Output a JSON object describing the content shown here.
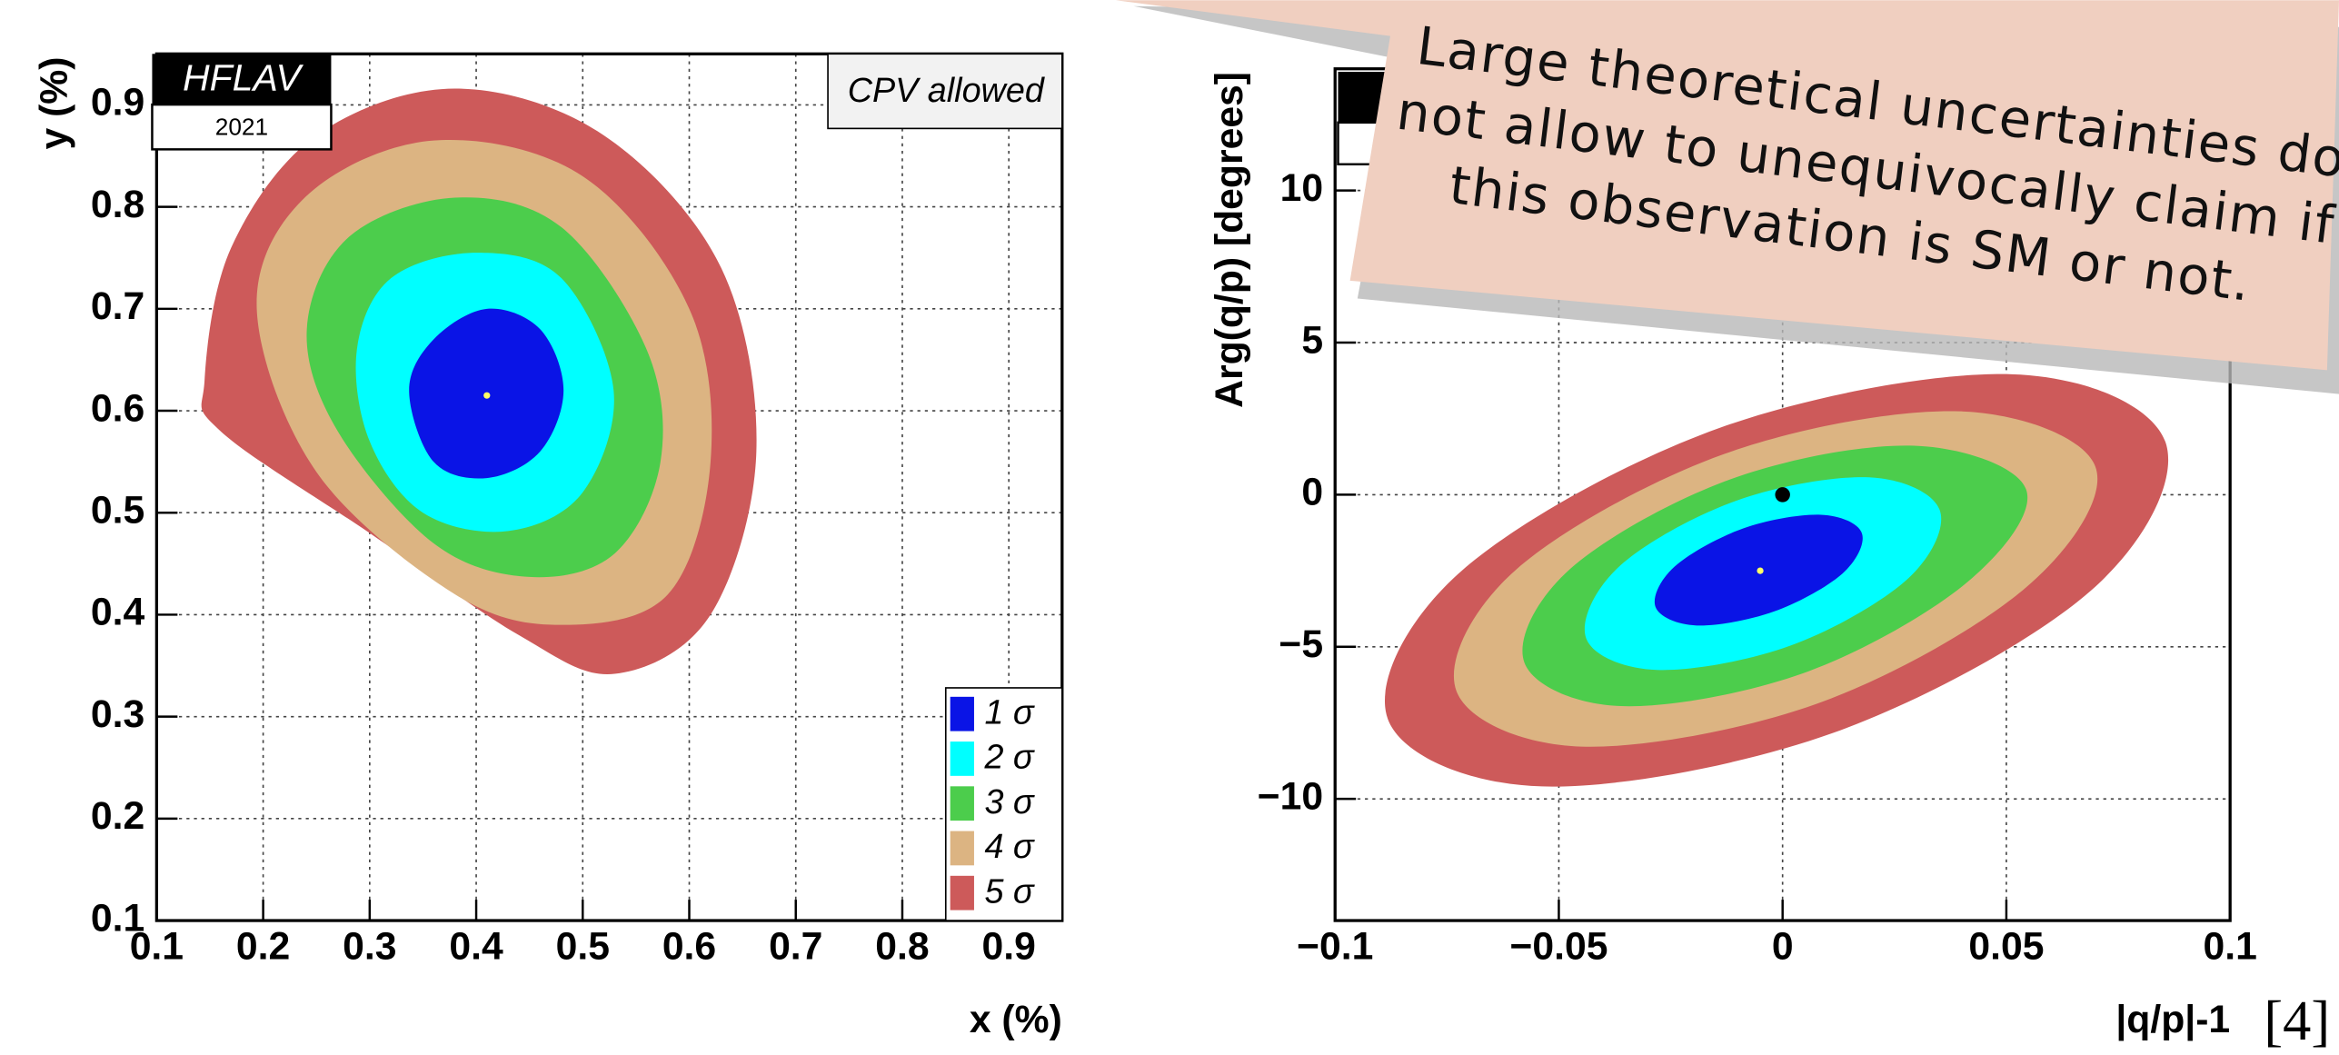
{
  "chart_data": [
    {
      "type": "contour",
      "x_label": "x (%)",
      "y_label": "y (%)",
      "badge": {
        "title": "HFLAV",
        "year": "2021"
      },
      "note": "CPV allowed",
      "xlim": [
        0.1,
        0.95
      ],
      "ylim": [
        0.1,
        0.95
      ],
      "xticks": [
        0.1,
        0.2,
        0.3,
        0.4,
        0.5,
        0.6,
        0.7,
        0.8,
        0.9
      ],
      "yticks": [
        0.1,
        0.2,
        0.3,
        0.4,
        0.5,
        0.6,
        0.7,
        0.8,
        0.9
      ],
      "grid": true,
      "legend": "bottom right",
      "series": [
        {
          "name": "1 σ",
          "color": "#0a14e6",
          "x": [
            0.337,
            0.36,
            0.41,
            0.46,
            0.482,
            0.46,
            0.41,
            0.36
          ],
          "y": [
            0.62,
            0.67,
            0.7,
            0.68,
            0.62,
            0.56,
            0.534,
            0.55
          ]
        },
        {
          "name": "2 σ",
          "color": "#00ffff",
          "x": [
            0.288,
            0.32,
            0.4,
            0.48,
            0.529,
            0.5,
            0.43,
            0.35,
            0.3
          ],
          "y": [
            0.66,
            0.73,
            0.755,
            0.73,
            0.62,
            0.52,
            0.482,
            0.5,
            0.57
          ]
        },
        {
          "name": "3 σ",
          "color": "#4ccd4c",
          "x": [
            0.241,
            0.28,
            0.38,
            0.48,
            0.56,
            0.573,
            0.53,
            0.45,
            0.36,
            0.27
          ],
          "y": [
            0.68,
            0.77,
            0.809,
            0.78,
            0.66,
            0.55,
            0.46,
            0.437,
            0.47,
            0.58
          ]
        },
        {
          "name": "4 σ",
          "color": "#dcb482",
          "x": [
            0.194,
            0.24,
            0.36,
            0.5,
            0.6,
            0.62,
            0.58,
            0.48,
            0.38,
            0.25
          ],
          "y": [
            0.7,
            0.81,
            0.865,
            0.83,
            0.7,
            0.55,
            0.42,
            0.39,
            0.42,
            0.54
          ]
        },
        {
          "name": "5 σ",
          "color": "#cd5a5a",
          "x": [
            0.145,
            0.17,
            0.25,
            0.38,
            0.52,
            0.63,
            0.663,
            0.62,
            0.53,
            0.44,
            0.3,
            0.16
          ],
          "y": [
            0.63,
            0.76,
            0.87,
            0.916,
            0.87,
            0.74,
            0.56,
            0.4,
            0.342,
            0.38,
            0.48,
            0.58
          ]
        }
      ],
      "points": [
        {
          "x": 0.41,
          "y": 0.615,
          "color": "#ffff66"
        }
      ]
    },
    {
      "type": "contour",
      "x_label": "|q/p|-1",
      "y_label": "Arg(q/p) [degrees]",
      "xlim": [
        -0.1,
        0.1
      ],
      "ylim": [
        -14,
        14
      ],
      "xticks": [
        {
          "value": -0.1,
          "label": "−0.1"
        },
        {
          "value": -0.05,
          "label": "−0.05"
        },
        0,
        0.05,
        0.1
      ],
      "yticks": [
        {
          "value": -10,
          "label": "−10"
        },
        {
          "value": -5,
          "label": "−5"
        },
        0,
        5,
        10
      ],
      "grid": true,
      "series": [
        {
          "color": "#0a14e6",
          "x": [
            0.0177,
            0.0134,
            -0.0019,
            -0.0192,
            -0.0284,
            -0.0241,
            -0.0088,
            0.0085
          ],
          "y": [
            -1.26,
            -2.59,
            -3.84,
            -4.3,
            -3.69,
            -2.36,
            -1.11,
            -0.66
          ]
        },
        {
          "color": "#00ffff",
          "x": [
            0.0351,
            0.0278,
            0.0016,
            -0.0281,
            -0.0439,
            -0.0365,
            -0.0104,
            0.0193
          ],
          "y": [
            -0.5,
            -2.79,
            -4.97,
            -5.76,
            -4.72,
            -2.36,
            -0.2,
            0.57
          ]
        },
        {
          "color": "#4ccd4c",
          "x": [
            0.0544,
            0.041,
            0.0046,
            -0.0361,
            -0.0577,
            -0.0474,
            -0.0114,
            0.0294
          ],
          "y": [
            0.18,
            -2.91,
            -5.87,
            -6.95,
            -5.52,
            -2.43,
            0.52,
            1.61
          ]
        },
        {
          "color": "#dcb482",
          "x": [
            0.0699,
            0.0543,
            0.0077,
            -0.045,
            -0.0729,
            -0.0596,
            -0.013,
            0.0396
          ],
          "y": [
            0.92,
            -3.06,
            -6.87,
            -8.28,
            -6.45,
            -2.47,
            1.34,
            2.74
          ]
        },
        {
          "color": "#cd5a5a",
          "x": [
            0.0855,
            0.069,
            0.0113,
            -0.0538,
            -0.0882,
            -0.0717,
            -0.014,
            0.0512
          ],
          "y": [
            1.75,
            -3.14,
            -7.83,
            -9.59,
            -7.38,
            -2.5,
            2.2,
            3.96
          ]
        }
      ],
      "points": [
        {
          "x": -0.005,
          "y": -2.5,
          "color": "#ffff66"
        },
        {
          "x": 0,
          "y": 0,
          "color": "#000000"
        }
      ]
    }
  ],
  "annotation": {
    "lines": [
      "Large theoretical uncertainties do",
      "not allow to unequivocally claim if",
      "this observation is SM or not."
    ]
  },
  "citation": "[4]"
}
